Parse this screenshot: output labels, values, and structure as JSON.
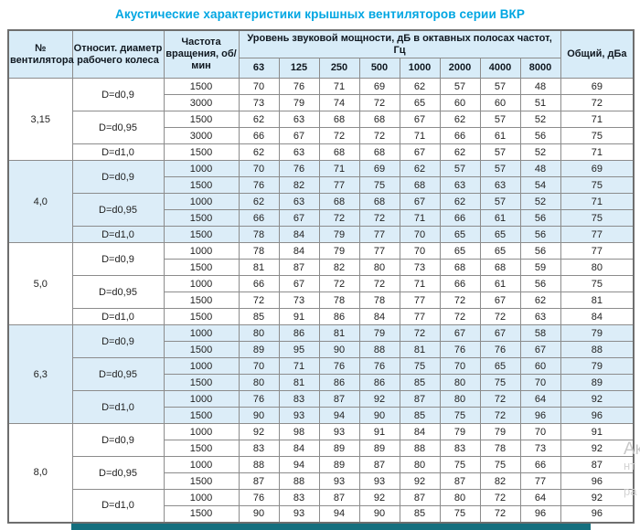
{
  "title": "Акустические характеристики крышных вентиляторов серии ВКР",
  "colors": {
    "title_accent": "#00a6e2",
    "header_bg": "#d8ecf8",
    "band_bg": "#dcedf8",
    "border": "#8c8c8c",
    "footer_bar": "#156f7e"
  },
  "watermark": {
    "fragments": [
      "Ак",
      "нт",
      "ра"
    ]
  },
  "table": {
    "header": {
      "fan_no": "№ вентилятора",
      "diameter": "Относит. диаметр рабочего колеса",
      "rpm": "Частота вращения, об/мин",
      "spl_group": "Уровень звуковой мощности, дБ в октавных полосах частот, Гц",
      "freqs": [
        "63",
        "125",
        "250",
        "500",
        "1000",
        "2000",
        "4000",
        "8000"
      ],
      "total": "Общий, дБа"
    },
    "groups": [
      {
        "fan": "3,15",
        "shaded": false,
        "subgroups": [
          {
            "diameter": "D=d0,9",
            "rows": [
              {
                "rpm": "1500",
                "levels": [
                  70,
                  76,
                  71,
                  69,
                  62,
                  57,
                  57,
                  48
                ],
                "total": 69
              },
              {
                "rpm": "3000",
                "levels": [
                  73,
                  79,
                  74,
                  72,
                  65,
                  60,
                  60,
                  51
                ],
                "total": 72
              }
            ]
          },
          {
            "diameter": "D=d0,95",
            "rows": [
              {
                "rpm": "1500",
                "levels": [
                  62,
                  63,
                  68,
                  68,
                  67,
                  62,
                  57,
                  52
                ],
                "total": 71
              },
              {
                "rpm": "3000",
                "levels": [
                  66,
                  67,
                  72,
                  72,
                  71,
                  66,
                  61,
                  56
                ],
                "total": 75
              }
            ]
          },
          {
            "diameter": "D=d1,0",
            "rows": [
              {
                "rpm": "1500",
                "levels": [
                  62,
                  63,
                  68,
                  68,
                  67,
                  62,
                  57,
                  52
                ],
                "total": 71
              }
            ]
          }
        ]
      },
      {
        "fan": "4,0",
        "shaded": true,
        "subgroups": [
          {
            "diameter": "D=d0,9",
            "rows": [
              {
                "rpm": "1000",
                "levels": [
                  70,
                  76,
                  71,
                  69,
                  62,
                  57,
                  57,
                  48
                ],
                "total": 69
              },
              {
                "rpm": "1500",
                "levels": [
                  76,
                  82,
                  77,
                  75,
                  68,
                  63,
                  63,
                  54
                ],
                "total": 75
              }
            ]
          },
          {
            "diameter": "D=d0,95",
            "rows": [
              {
                "rpm": "1000",
                "levels": [
                  62,
                  63,
                  68,
                  68,
                  67,
                  62,
                  57,
                  52
                ],
                "total": 71
              },
              {
                "rpm": "1500",
                "levels": [
                  66,
                  67,
                  72,
                  72,
                  71,
                  66,
                  61,
                  56
                ],
                "total": 75
              }
            ]
          },
          {
            "diameter": "D=d1,0",
            "rows": [
              {
                "rpm": "1500",
                "levels": [
                  78,
                  84,
                  79,
                  77,
                  70,
                  65,
                  65,
                  56
                ],
                "total": 77
              }
            ]
          }
        ]
      },
      {
        "fan": "5,0",
        "shaded": false,
        "subgroups": [
          {
            "diameter": "D=d0,9",
            "rows": [
              {
                "rpm": "1000",
                "levels": [
                  78,
                  84,
                  79,
                  77,
                  70,
                  65,
                  65,
                  56
                ],
                "total": 77
              },
              {
                "rpm": "1500",
                "levels": [
                  81,
                  87,
                  82,
                  80,
                  73,
                  68,
                  68,
                  59
                ],
                "total": 80
              }
            ]
          },
          {
            "diameter": "D=d0,95",
            "rows": [
              {
                "rpm": "1000",
                "levels": [
                  66,
                  67,
                  72,
                  72,
                  71,
                  66,
                  61,
                  56
                ],
                "total": 75
              },
              {
                "rpm": "1500",
                "levels": [
                  72,
                  73,
                  78,
                  78,
                  77,
                  72,
                  67,
                  62
                ],
                "total": 81
              }
            ]
          },
          {
            "diameter": "D=d1,0",
            "rows": [
              {
                "rpm": "1500",
                "levels": [
                  85,
                  91,
                  86,
                  84,
                  77,
                  72,
                  72,
                  63
                ],
                "total": 84
              }
            ]
          }
        ]
      },
      {
        "fan": "6,3",
        "shaded": true,
        "subgroups": [
          {
            "diameter": "D=d0,9",
            "rows": [
              {
                "rpm": "1000",
                "levels": [
                  80,
                  86,
                  81,
                  79,
                  72,
                  67,
                  67,
                  58
                ],
                "total": 79
              },
              {
                "rpm": "1500",
                "levels": [
                  89,
                  95,
                  90,
                  88,
                  81,
                  76,
                  76,
                  67
                ],
                "total": 88
              }
            ]
          },
          {
            "diameter": "D=d0,95",
            "rows": [
              {
                "rpm": "1000",
                "levels": [
                  70,
                  71,
                  76,
                  76,
                  75,
                  70,
                  65,
                  60
                ],
                "total": 79
              },
              {
                "rpm": "1500",
                "levels": [
                  80,
                  81,
                  86,
                  86,
                  85,
                  80,
                  75,
                  70
                ],
                "total": 89
              }
            ]
          },
          {
            "diameter": "D=d1,0",
            "rows": [
              {
                "rpm": "1000",
                "levels": [
                  76,
                  83,
                  87,
                  92,
                  87,
                  80,
                  72,
                  64
                ],
                "total": 92
              },
              {
                "rpm": "1500",
                "levels": [
                  90,
                  93,
                  94,
                  90,
                  85,
                  75,
                  72,
                  96
                ],
                "total": 96
              }
            ]
          }
        ]
      },
      {
        "fan": "8,0",
        "shaded": false,
        "subgroups": [
          {
            "diameter": "D=d0,9",
            "rows": [
              {
                "rpm": "1000",
                "levels": [
                  92,
                  98,
                  93,
                  91,
                  84,
                  79,
                  79,
                  70
                ],
                "total": 91
              },
              {
                "rpm": "1500",
                "levels": [
                  83,
                  84,
                  89,
                  89,
                  88,
                  83,
                  78,
                  73
                ],
                "total": 92
              }
            ]
          },
          {
            "diameter": "D=d0,95",
            "rows": [
              {
                "rpm": "1000",
                "levels": [
                  88,
                  94,
                  89,
                  87,
                  80,
                  75,
                  75,
                  66
                ],
                "total": 87
              },
              {
                "rpm": "1500",
                "levels": [
                  87,
                  88,
                  93,
                  93,
                  92,
                  87,
                  82,
                  77
                ],
                "total": 96
              }
            ]
          },
          {
            "diameter": "D=d1,0",
            "rows": [
              {
                "rpm": "1000",
                "levels": [
                  76,
                  83,
                  87,
                  92,
                  87,
                  80,
                  72,
                  64
                ],
                "total": 92
              },
              {
                "rpm": "1500",
                "levels": [
                  90,
                  93,
                  94,
                  90,
                  85,
                  75,
                  72,
                  96
                ],
                "total": 96
              }
            ]
          }
        ]
      }
    ]
  }
}
